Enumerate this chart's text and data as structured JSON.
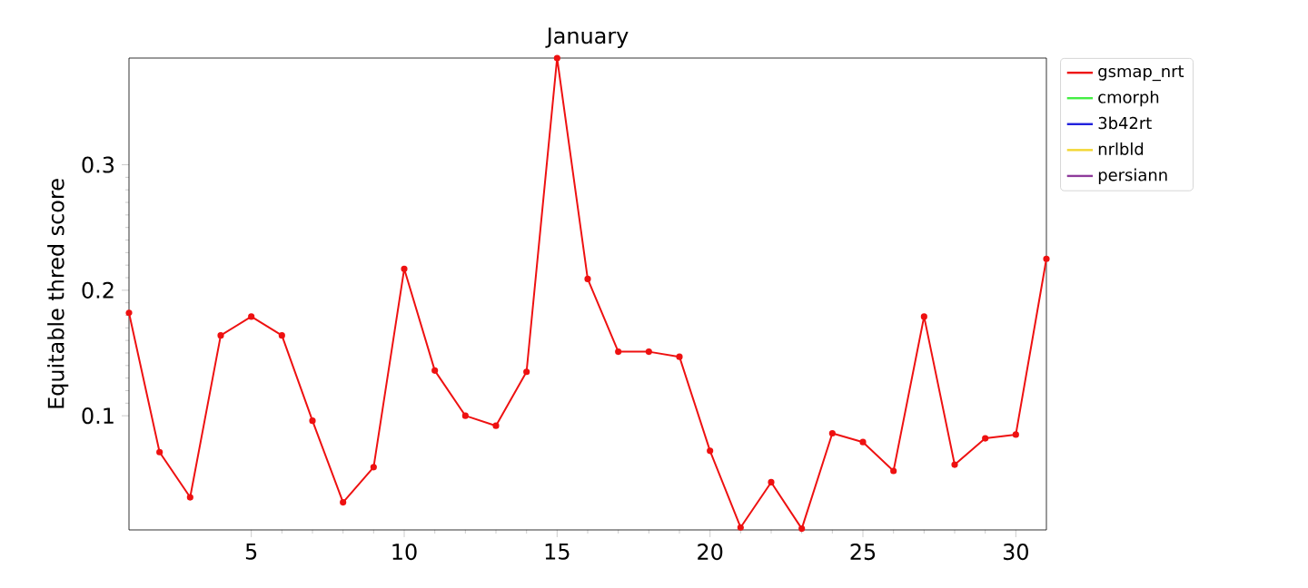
{
  "chart_data": {
    "type": "line",
    "title": "January",
    "ylabel": "Equitable thred score",
    "x": [
      1,
      2,
      3,
      4,
      5,
      6,
      7,
      8,
      9,
      10,
      11,
      12,
      13,
      14,
      15,
      16,
      17,
      18,
      19,
      20,
      21,
      22,
      23,
      24,
      25,
      26,
      27,
      28,
      29,
      30,
      31
    ],
    "series": [
      {
        "name": "gsmap_nrt",
        "color": "#ee1111",
        "values": [
          0.182,
          0.071,
          0.035,
          0.164,
          0.179,
          0.164,
          0.096,
          0.031,
          0.059,
          0.217,
          0.136,
          0.1,
          0.092,
          0.135,
          0.385,
          0.209,
          0.151,
          0.151,
          0.147,
          0.072,
          0.011,
          0.047,
          0.01,
          0.086,
          0.079,
          0.056,
          0.179,
          0.061,
          0.082,
          0.085,
          0.225
        ]
      },
      {
        "name": "cmorph",
        "color": "#44ee44",
        "values": [
          null,
          null,
          null,
          null,
          null,
          null,
          null,
          null,
          null,
          null,
          null,
          null,
          null,
          null,
          null,
          null,
          null,
          null,
          null,
          null,
          null,
          null,
          null,
          null,
          null,
          null,
          null,
          null,
          null,
          null,
          null
        ]
      },
      {
        "name": "3b42rt",
        "color": "#2222dd",
        "values": [
          null,
          null,
          null,
          null,
          null,
          null,
          null,
          null,
          null,
          null,
          null,
          null,
          null,
          null,
          null,
          null,
          null,
          null,
          null,
          null,
          null,
          null,
          null,
          null,
          null,
          null,
          null,
          null,
          null,
          null,
          null
        ]
      },
      {
        "name": "nrlbld",
        "color": "#f2d630",
        "values": [
          null,
          null,
          null,
          null,
          null,
          null,
          null,
          null,
          null,
          null,
          null,
          null,
          null,
          null,
          null,
          null,
          null,
          null,
          null,
          null,
          null,
          null,
          null,
          null,
          null,
          null,
          null,
          null,
          null,
          null,
          null
        ]
      },
      {
        "name": "persiann",
        "color": "#8e3a9a",
        "values": [
          null,
          null,
          null,
          null,
          null,
          null,
          null,
          null,
          null,
          null,
          null,
          null,
          null,
          null,
          null,
          null,
          null,
          null,
          null,
          null,
          null,
          null,
          null,
          null,
          null,
          null,
          null,
          null,
          null,
          null,
          null
        ]
      }
    ],
    "xlim": [
      1,
      31
    ],
    "ylim": [
      0.009,
      0.385
    ],
    "xticks": [
      5,
      10,
      15,
      20,
      25,
      30
    ],
    "yticks": [
      0.1,
      0.2,
      0.3
    ],
    "legend": "right",
    "marker": "circle"
  }
}
